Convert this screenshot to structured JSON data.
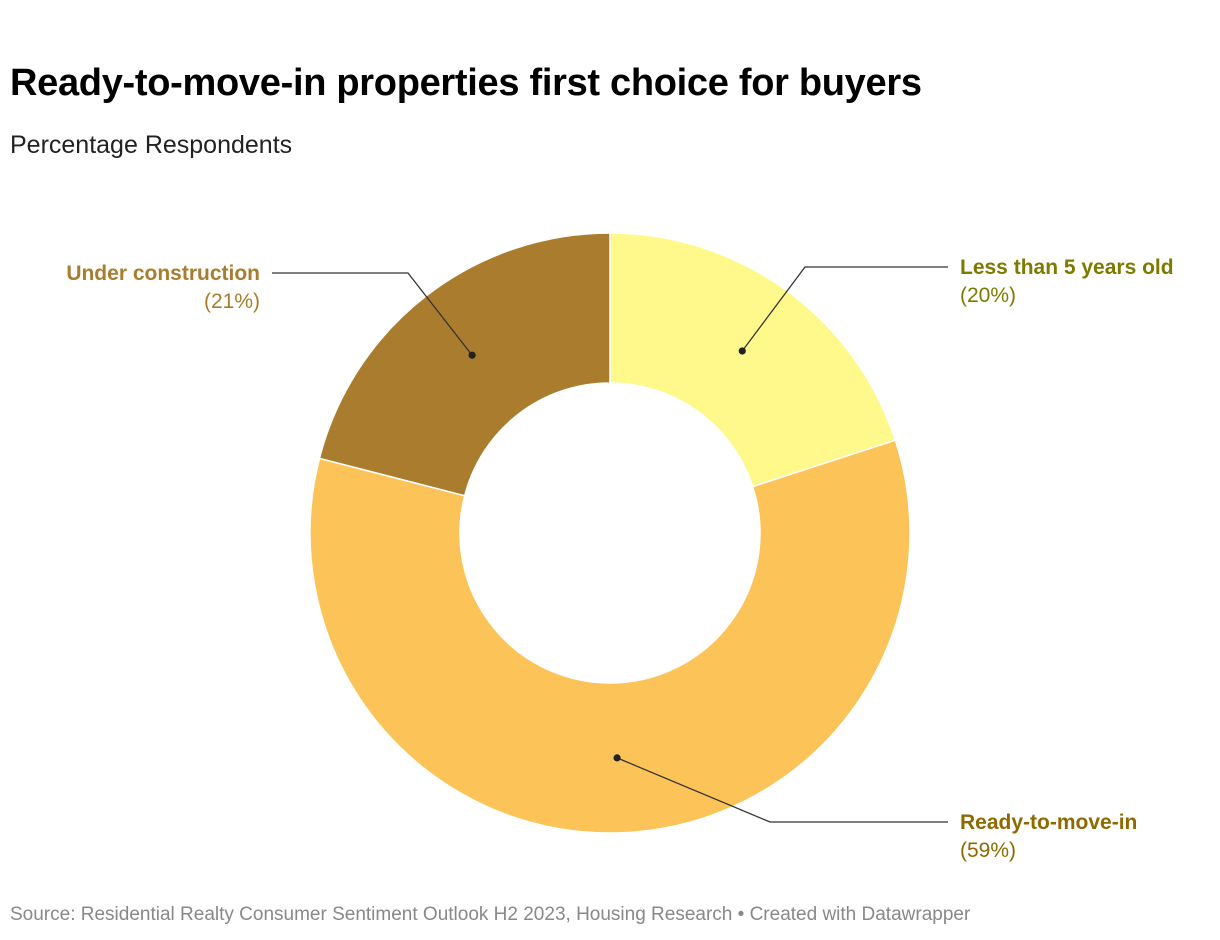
{
  "header": {
    "title": "Ready-to-move-in properties first choice for buyers",
    "subtitle": "Percentage Respondents"
  },
  "footer": {
    "source": "Source: Residential Realty Consumer Sentiment Outlook H2 2023, Housing Research • Created with Datawrapper"
  },
  "chart_data": {
    "type": "pie",
    "donut": true,
    "title": "Ready-to-move-in properties first choice for buyers",
    "subtitle": "Percentage Respondents",
    "unit": "%",
    "slices": [
      {
        "label": "Less than 5 years old",
        "value": 20,
        "value_label": "(20%)",
        "color": "#fff98b",
        "label_color": "#7e7a00"
      },
      {
        "label": "Ready-to-move-in",
        "value": 59,
        "value_label": "(59%)",
        "color": "#fbc358",
        "label_color": "#8d6a00"
      },
      {
        "label": "Under construction",
        "value": 21,
        "value_label": "(21%)",
        "color": "#a97c2e",
        "label_color": "#a97c2e"
      }
    ]
  }
}
